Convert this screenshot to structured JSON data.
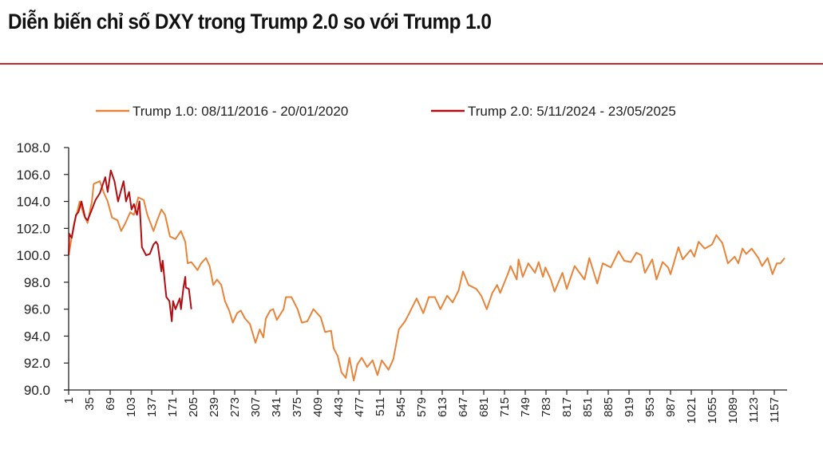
{
  "title": "Diễn biến chỉ số DXY trong Trump 2.0 so với Trump 1.0",
  "chart_data": {
    "type": "line",
    "title": "Diễn biến chỉ số DXY trong Trump 2.0 so với Trump 1.0",
    "xlabel": "",
    "ylabel": "",
    "ylim": [
      90,
      108
    ],
    "xlim": [
      1,
      1178
    ],
    "yticks": [
      "90.0",
      "92.0",
      "94.0",
      "96.0",
      "98.0",
      "100.0",
      "102.0",
      "104.0",
      "106.0",
      "108.0"
    ],
    "xticks": [
      "1",
      "35",
      "69",
      "103",
      "137",
      "171",
      "205",
      "239",
      "273",
      "307",
      "341",
      "375",
      "409",
      "443",
      "477",
      "511",
      "545",
      "579",
      "613",
      "647",
      "681",
      "715",
      "749",
      "783",
      "817",
      "851",
      "885",
      "919",
      "953",
      "987",
      "1021",
      "1055",
      "1089",
      "1123",
      "1157"
    ],
    "grid": false,
    "legend_position": "top",
    "series": [
      {
        "name": "Trump 1.0: 08/11/2016 - 20/01/2020",
        "color": "#E8843A",
        "points": [
          [
            1,
            100.0
          ],
          [
            10,
            102.4
          ],
          [
            15,
            103.2
          ],
          [
            19,
            104.0
          ],
          [
            26,
            103.0
          ],
          [
            32,
            102.4
          ],
          [
            39,
            104.0
          ],
          [
            42,
            105.3
          ],
          [
            52,
            105.5
          ],
          [
            59,
            104.6
          ],
          [
            65,
            104.0
          ],
          [
            72,
            102.8
          ],
          [
            81,
            102.6
          ],
          [
            87,
            101.8
          ],
          [
            94,
            102.4
          ],
          [
            102,
            103.2
          ],
          [
            108,
            103.0
          ],
          [
            115,
            104.3
          ],
          [
            124,
            104.1
          ],
          [
            130,
            103.0
          ],
          [
            140,
            101.8
          ],
          [
            146,
            102.6
          ],
          [
            153,
            103.4
          ],
          [
            159,
            103.0
          ],
          [
            167,
            101.4
          ],
          [
            176,
            101.2
          ],
          [
            185,
            101.8
          ],
          [
            192,
            101.0
          ],
          [
            196,
            99.4
          ],
          [
            202,
            99.5
          ],
          [
            212,
            98.9
          ],
          [
            218,
            99.4
          ],
          [
            226,
            99.8
          ],
          [
            232,
            99.2
          ],
          [
            238,
            97.8
          ],
          [
            244,
            98.2
          ],
          [
            251,
            97.8
          ],
          [
            257,
            96.6
          ],
          [
            264,
            95.9
          ],
          [
            270,
            95.0
          ],
          [
            277,
            95.7
          ],
          [
            283,
            95.9
          ],
          [
            290,
            95.3
          ],
          [
            298,
            94.9
          ],
          [
            307,
            93.5
          ],
          [
            314,
            94.5
          ],
          [
            320,
            93.9
          ],
          [
            324,
            95.3
          ],
          [
            331,
            95.9
          ],
          [
            336,
            96.0
          ],
          [
            342,
            95.2
          ],
          [
            353,
            96.0
          ],
          [
            357,
            96.9
          ],
          [
            366,
            96.9
          ],
          [
            376,
            96.0
          ],
          [
            383,
            95.0
          ],
          [
            392,
            95.1
          ],
          [
            402,
            96.0
          ],
          [
            414,
            95.4
          ],
          [
            421,
            94.3
          ],
          [
            431,
            94.4
          ],
          [
            435,
            93.1
          ],
          [
            442,
            92.5
          ],
          [
            448,
            91.3
          ],
          [
            455,
            90.9
          ],
          [
            461,
            92.4
          ],
          [
            468,
            90.7
          ],
          [
            474,
            91.9
          ],
          [
            481,
            92.4
          ],
          [
            490,
            91.7
          ],
          [
            499,
            92.2
          ],
          [
            507,
            91.1
          ],
          [
            514,
            92.2
          ],
          [
            525,
            91.5
          ],
          [
            533,
            92.3
          ],
          [
            542,
            94.5
          ],
          [
            552,
            95.1
          ],
          [
            559,
            95.7
          ],
          [
            571,
            96.8
          ],
          [
            582,
            95.7
          ],
          [
            591,
            96.9
          ],
          [
            601,
            96.9
          ],
          [
            610,
            96.0
          ],
          [
            621,
            97.0
          ],
          [
            630,
            96.5
          ],
          [
            640,
            97.4
          ],
          [
            647,
            98.8
          ],
          [
            656,
            97.8
          ],
          [
            669,
            97.5
          ],
          [
            677,
            97.0
          ],
          [
            686,
            96.0
          ],
          [
            695,
            97.2
          ],
          [
            703,
            97.8
          ],
          [
            708,
            97.2
          ],
          [
            722,
            98.8
          ],
          [
            725,
            99.2
          ],
          [
            735,
            98.2
          ],
          [
            738,
            99.7
          ],
          [
            745,
            98.4
          ],
          [
            754,
            99.4
          ],
          [
            765,
            98.7
          ],
          [
            771,
            99.5
          ],
          [
            778,
            98.4
          ],
          [
            782,
            99.1
          ],
          [
            791,
            98.2
          ],
          [
            797,
            97.3
          ],
          [
            810,
            98.7
          ],
          [
            817,
            97.5
          ],
          [
            830,
            99.2
          ],
          [
            846,
            98.2
          ],
          [
            854,
            99.8
          ],
          [
            867,
            97.9
          ],
          [
            876,
            99.4
          ],
          [
            889,
            99.1
          ],
          [
            902,
            100.3
          ],
          [
            911,
            99.6
          ],
          [
            922,
            99.5
          ],
          [
            931,
            100.2
          ],
          [
            939,
            100.0
          ],
          [
            945,
            98.7
          ],
          [
            957,
            99.7
          ],
          [
            964,
            98.2
          ],
          [
            974,
            99.5
          ],
          [
            983,
            99.1
          ],
          [
            987,
            98.6
          ],
          [
            1000,
            100.6
          ],
          [
            1007,
            99.7
          ],
          [
            1020,
            100.4
          ],
          [
            1026,
            99.9
          ],
          [
            1033,
            101.0
          ],
          [
            1043,
            100.5
          ],
          [
            1055,
            100.8
          ],
          [
            1062,
            101.5
          ],
          [
            1072,
            100.9
          ],
          [
            1081,
            99.4
          ],
          [
            1092,
            99.9
          ],
          [
            1098,
            99.4
          ],
          [
            1105,
            100.5
          ],
          [
            1111,
            100.1
          ],
          [
            1120,
            100.5
          ],
          [
            1131,
            99.8
          ],
          [
            1137,
            99.2
          ],
          [
            1146,
            99.8
          ],
          [
            1154,
            98.6
          ],
          [
            1161,
            99.4
          ],
          [
            1167,
            99.4
          ],
          [
            1174,
            99.8
          ]
        ]
      },
      {
        "name": "Trump 2.0: 5/11/2024 - 23/05/2025",
        "color": "#B00E12",
        "points": [
          [
            1,
            100.0
          ],
          [
            2,
            101.6
          ],
          [
            6,
            101.3
          ],
          [
            13,
            103.0
          ],
          [
            17,
            103.2
          ],
          [
            22,
            104.0
          ],
          [
            28,
            102.8
          ],
          [
            32,
            102.6
          ],
          [
            39,
            103.4
          ],
          [
            45,
            104.1
          ],
          [
            52,
            104.6
          ],
          [
            61,
            105.8
          ],
          [
            65,
            104.7
          ],
          [
            70,
            106.3
          ],
          [
            76,
            105.5
          ],
          [
            82,
            104.0
          ],
          [
            91,
            105.5
          ],
          [
            95,
            104.0
          ],
          [
            100,
            104.7
          ],
          [
            104,
            103.4
          ],
          [
            108,
            103.8
          ],
          [
            113,
            103.0
          ],
          [
            117,
            104.0
          ],
          [
            121,
            100.6
          ],
          [
            128,
            100.0
          ],
          [
            134,
            100.1
          ],
          [
            140,
            100.8
          ],
          [
            144,
            101.0
          ],
          [
            147,
            100.8
          ],
          [
            153,
            98.8
          ],
          [
            155,
            99.6
          ],
          [
            159,
            97.8
          ],
          [
            161,
            96.9
          ],
          [
            166,
            96.6
          ],
          [
            170,
            95.1
          ],
          [
            172,
            96.6
          ],
          [
            176,
            96.0
          ],
          [
            183,
            96.8
          ],
          [
            185,
            96.0
          ],
          [
            189,
            97.6
          ],
          [
            192,
            98.4
          ],
          [
            193,
            97.6
          ],
          [
            198,
            97.5
          ],
          [
            202,
            96.0
          ]
        ]
      }
    ]
  }
}
